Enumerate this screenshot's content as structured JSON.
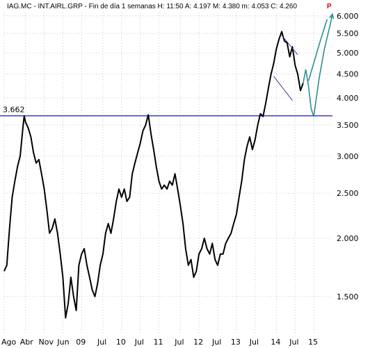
{
  "header": {
    "text": "IAG.MC - INT.AIRL.GRP - Fin de día 1 semanas  H: 11:50  A: 4.197  M: 4.380  m: 4.053  C: 4.260",
    "flag": "P"
  },
  "colors": {
    "price": "#000000",
    "hline": "#1a1aa8",
    "projection": "#2e8f8f",
    "channel": "#3a3a9a",
    "grid": "#c8c8c8",
    "flag": "#d00000"
  },
  "chart_data": {
    "type": "line",
    "title": "",
    "scale": "log",
    "ylim": [
      1.25,
      6.1
    ],
    "y_ticks": [
      "6.000",
      "5.500",
      "5.000",
      "4.500",
      "4.000",
      "3.500",
      "3.000",
      "2.500",
      "2.000",
      "1.500"
    ],
    "y_tick_values": [
      6.0,
      5.5,
      5.0,
      4.5,
      4.0,
      3.5,
      3.0,
      2.5,
      2.0,
      1.5
    ],
    "x_ticks": [
      "Ago",
      "Abr",
      "Nov",
      "Jun",
      "09",
      "Jul",
      "10",
      "Jul",
      "11",
      "Jul",
      "12",
      "Jul",
      "13",
      "Jul",
      "14",
      "Jul",
      "15"
    ],
    "x_tick_pos": [
      0,
      8,
      15,
      22,
      29,
      37,
      44,
      51,
      58,
      66,
      73,
      80,
      87,
      94,
      102,
      109,
      116
    ],
    "horizontal_line": {
      "value": 3.662,
      "label": "3.662"
    },
    "grid": true,
    "series": [
      {
        "key": "price",
        "points": [
          [
            0,
            1.7
          ],
          [
            1,
            1.75
          ],
          [
            2,
            2.1
          ],
          [
            3,
            2.45
          ],
          [
            4,
            2.65
          ],
          [
            5,
            2.85
          ],
          [
            6,
            3.0
          ],
          [
            7,
            3.45
          ],
          [
            7.5,
            3.66
          ],
          [
            8,
            3.55
          ],
          [
            9,
            3.45
          ],
          [
            10,
            3.3
          ],
          [
            11,
            3.05
          ],
          [
            12,
            2.9
          ],
          [
            13,
            2.95
          ],
          [
            14,
            2.75
          ],
          [
            15,
            2.55
          ],
          [
            16,
            2.3
          ],
          [
            17,
            2.05
          ],
          [
            18,
            2.1
          ],
          [
            19,
            2.2
          ],
          [
            20,
            2.05
          ],
          [
            21,
            1.85
          ],
          [
            22,
            1.65
          ],
          [
            23,
            1.35
          ],
          [
            24,
            1.45
          ],
          [
            25,
            1.65
          ],
          [
            26,
            1.5
          ],
          [
            27,
            1.4
          ],
          [
            28,
            1.75
          ],
          [
            29,
            1.85
          ],
          [
            30,
            1.9
          ],
          [
            31,
            1.75
          ],
          [
            32,
            1.65
          ],
          [
            33,
            1.55
          ],
          [
            34,
            1.5
          ],
          [
            35,
            1.6
          ],
          [
            36,
            1.75
          ],
          [
            37,
            1.85
          ],
          [
            38,
            2.05
          ],
          [
            39,
            2.15
          ],
          [
            40,
            2.05
          ],
          [
            41,
            2.2
          ],
          [
            42,
            2.4
          ],
          [
            43,
            2.55
          ],
          [
            44,
            2.45
          ],
          [
            45,
            2.55
          ],
          [
            46,
            2.4
          ],
          [
            47,
            2.45
          ],
          [
            48,
            2.75
          ],
          [
            49,
            2.9
          ],
          [
            50,
            3.05
          ],
          [
            51,
            3.2
          ],
          [
            52,
            3.4
          ],
          [
            53,
            3.5
          ],
          [
            54,
            3.68
          ],
          [
            55,
            3.35
          ],
          [
            56,
            3.1
          ],
          [
            57,
            2.85
          ],
          [
            58,
            2.65
          ],
          [
            59,
            2.55
          ],
          [
            60,
            2.6
          ],
          [
            61,
            2.55
          ],
          [
            62,
            2.65
          ],
          [
            63,
            2.6
          ],
          [
            64,
            2.75
          ],
          [
            65,
            2.55
          ],
          [
            66,
            2.35
          ],
          [
            67,
            2.15
          ],
          [
            68,
            1.9
          ],
          [
            69,
            1.75
          ],
          [
            70,
            1.8
          ],
          [
            71,
            1.65
          ],
          [
            72,
            1.7
          ],
          [
            73,
            1.85
          ],
          [
            74,
            1.9
          ],
          [
            75,
            2.0
          ],
          [
            76,
            1.9
          ],
          [
            77,
            1.85
          ],
          [
            78,
            1.95
          ],
          [
            79,
            1.8
          ],
          [
            80,
            1.75
          ],
          [
            81,
            1.85
          ],
          [
            82,
            1.85
          ],
          [
            83,
            1.95
          ],
          [
            84,
            2.0
          ],
          [
            85,
            2.05
          ],
          [
            86,
            2.15
          ],
          [
            87,
            2.25
          ],
          [
            88,
            2.45
          ],
          [
            89,
            2.65
          ],
          [
            90,
            2.95
          ],
          [
            91,
            3.15
          ],
          [
            92,
            3.3
          ],
          [
            93,
            3.1
          ],
          [
            94,
            3.25
          ],
          [
            95,
            3.5
          ],
          [
            96,
            3.7
          ],
          [
            97,
            3.65
          ],
          [
            98,
            3.9
          ],
          [
            99,
            4.2
          ],
          [
            100,
            4.5
          ],
          [
            101,
            4.75
          ],
          [
            102,
            5.1
          ],
          [
            103,
            5.35
          ],
          [
            104,
            5.55
          ],
          [
            105,
            5.3
          ],
          [
            106,
            5.25
          ],
          [
            107,
            4.9
          ],
          [
            108,
            5.15
          ],
          [
            109,
            4.7
          ],
          [
            110,
            4.5
          ],
          [
            111,
            4.15
          ],
          [
            112,
            4.3
          ]
        ]
      },
      {
        "key": "projection",
        "points": [
          [
            112,
            4.3
          ],
          [
            113,
            4.6
          ],
          [
            114,
            4.25
          ],
          [
            115,
            3.8
          ],
          [
            116,
            3.65
          ],
          [
            118,
            4.4
          ],
          [
            120,
            5.1
          ],
          [
            122,
            5.7
          ],
          [
            123,
            6.05
          ]
        ]
      },
      {
        "key": "projection-upper",
        "points": [
          [
            114,
            4.35
          ],
          [
            116,
            4.75
          ],
          [
            118,
            5.2
          ],
          [
            121,
            5.9
          ]
        ]
      }
    ],
    "channel_lines": [
      [
        [
          104,
          5.45
        ],
        [
          110,
          4.95
        ]
      ],
      [
        [
          101,
          4.45
        ],
        [
          108,
          3.95
        ]
      ]
    ]
  }
}
